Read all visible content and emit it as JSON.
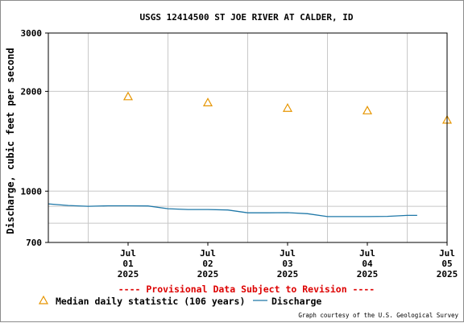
{
  "chart_data": {
    "type": "line",
    "title": "USGS 12414500 ST JOE RIVER AT CALDER, ID",
    "ylabel": "Discharge, cubic feet per second",
    "xlabel": "",
    "yscale": "log",
    "ylim": [
      700,
      3000
    ],
    "xlim": [
      "2025-06-30 12:00",
      "2025-07-05 12:00"
    ],
    "y_ticks": [
      {
        "value": 700,
        "label": "700"
      },
      {
        "value": 1000,
        "label": "1000"
      },
      {
        "value": 2000,
        "label": "2000"
      },
      {
        "value": 3000,
        "label": "3000"
      }
    ],
    "y_grid": [
      800,
      900,
      1000,
      2000
    ],
    "x_ticks": [
      {
        "date": "2025-07-01",
        "label": [
          "Jul",
          "01",
          "2025"
        ]
      },
      {
        "date": "2025-07-02",
        "label": [
          "Jul",
          "02",
          "2025"
        ]
      },
      {
        "date": "2025-07-03",
        "label": [
          "Jul",
          "03",
          "2025"
        ]
      },
      {
        "date": "2025-07-04",
        "label": [
          "Jul",
          "04",
          "2025"
        ]
      },
      {
        "date": "2025-07-05",
        "label": [
          "Jul",
          "05",
          "2025"
        ]
      }
    ],
    "x_grid": [
      "2025-07-01",
      "2025-07-02",
      "2025-07-03",
      "2025-07-04",
      "2025-07-05"
    ],
    "grid": true,
    "series": [
      {
        "name": "Median daily statistic (106 years)",
        "kind": "triangle-markers",
        "color": "#e69500",
        "points": [
          {
            "x": "2025-07-01 12:00",
            "y": 1930
          },
          {
            "x": "2025-07-02 12:00",
            "y": 1850
          },
          {
            "x": "2025-07-03 12:00",
            "y": 1780
          },
          {
            "x": "2025-07-04 12:00",
            "y": 1750
          },
          {
            "x": "2025-07-05 12:00",
            "y": 1640
          }
        ]
      },
      {
        "name": "Discharge",
        "kind": "line",
        "color": "#1f78a8",
        "points": [
          {
            "x": "2025-06-30 12:00",
            "y": 915
          },
          {
            "x": "2025-06-30 18:00",
            "y": 905
          },
          {
            "x": "2025-07-01 00:00",
            "y": 900
          },
          {
            "x": "2025-07-01 06:00",
            "y": 903
          },
          {
            "x": "2025-07-01 12:00",
            "y": 903
          },
          {
            "x": "2025-07-01 18:00",
            "y": 902
          },
          {
            "x": "2025-07-02 00:00",
            "y": 885
          },
          {
            "x": "2025-07-02 06:00",
            "y": 880
          },
          {
            "x": "2025-07-02 12:00",
            "y": 880
          },
          {
            "x": "2025-07-02 18:00",
            "y": 877
          },
          {
            "x": "2025-07-03 00:00",
            "y": 860
          },
          {
            "x": "2025-07-03 06:00",
            "y": 860
          },
          {
            "x": "2025-07-03 12:00",
            "y": 861
          },
          {
            "x": "2025-07-03 18:00",
            "y": 855
          },
          {
            "x": "2025-07-04 00:00",
            "y": 838
          },
          {
            "x": "2025-07-04 06:00",
            "y": 838
          },
          {
            "x": "2025-07-04 12:00",
            "y": 838
          },
          {
            "x": "2025-07-04 18:00",
            "y": 839
          },
          {
            "x": "2025-07-04 21:00",
            "y": 842
          },
          {
            "x": "2025-07-05 00:00",
            "y": 845
          },
          {
            "x": "2025-07-05 03:00",
            "y": 845
          }
        ]
      }
    ],
    "provisional_note": "---- Provisional Data Subject to Revision ----",
    "provisional_color": "#dd0000",
    "legend": [
      {
        "label": "Median daily statistic (106 years)",
        "marker": "triangle",
        "color": "#e69500"
      },
      {
        "label": "Discharge",
        "marker": "line",
        "color": "#1f78a8"
      }
    ],
    "legend_position": "bottom-left",
    "credit": "Graph courtesy of the U.S. Geological Survey"
  }
}
